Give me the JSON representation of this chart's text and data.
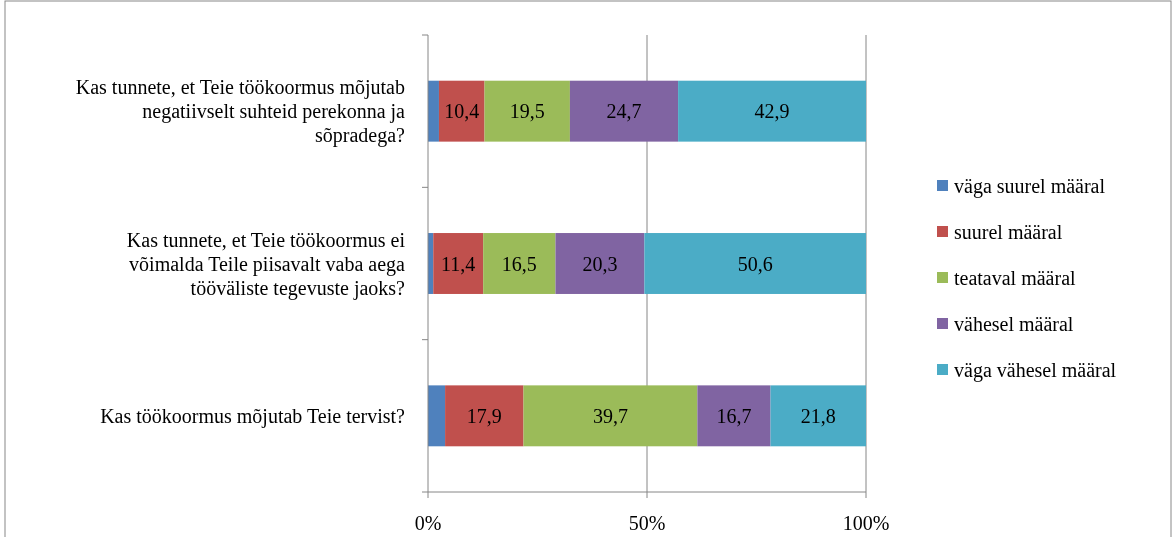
{
  "chart_data": {
    "type": "bar",
    "orientation": "horizontal",
    "stacked": true,
    "categories": [
      "Kas tunnete, et Teie töökoormus mõjutab negatiivselt suhteid perekonna ja sõpradega?",
      "Kas tunnete, et Teie töökoormus ei võimalda Teile piisavalt vaba aega tööväliste tegevuste jaoks?",
      "Kas töökoormus mõjutab Teie tervist?"
    ],
    "series": [
      {
        "name": "väga suurel määral",
        "color": "#4f81bd",
        "values": [
          2.5,
          1.2,
          3.9
        ],
        "value_labels": [
          null,
          null,
          null
        ]
      },
      {
        "name": "suurel määral",
        "color": "#c0504d",
        "values": [
          10.4,
          11.4,
          17.9
        ],
        "value_labels": [
          "10,4",
          "11,4",
          "17,9"
        ]
      },
      {
        "name": "teataval määral",
        "color": "#9bbb59",
        "values": [
          19.5,
          16.5,
          39.7
        ],
        "value_labels": [
          "19,5",
          "16,5",
          "39,7"
        ]
      },
      {
        "name": "vähesel määral",
        "color": "#8064a2",
        "values": [
          24.7,
          20.3,
          16.7
        ],
        "value_labels": [
          "24,7",
          "20,3",
          "16,7"
        ]
      },
      {
        "name": "väga vähesel määral",
        "color": "#4bacc6",
        "values": [
          42.9,
          50.6,
          21.8
        ],
        "value_labels": [
          "42,9",
          "50,6",
          "21,8"
        ]
      }
    ],
    "xlim": [
      0,
      100
    ],
    "xticks": [
      {
        "value": 0,
        "label": "0%"
      },
      {
        "value": 50,
        "label": "50%"
      },
      {
        "value": 100,
        "label": "100%"
      }
    ],
    "grid": "x",
    "legend": "right"
  }
}
